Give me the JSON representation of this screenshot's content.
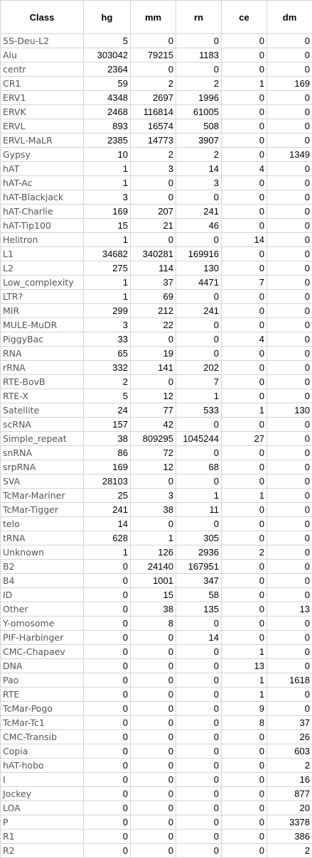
{
  "table": {
    "headers": [
      "Class",
      "hg",
      "mm",
      "rn",
      "ce",
      "dm"
    ],
    "rows": [
      [
        "5S-Deu-L2",
        "5",
        "0",
        "0",
        "0",
        "0"
      ],
      [
        "Alu",
        "303042",
        "79215",
        "1183",
        "0",
        "0"
      ],
      [
        "centr",
        "2364",
        "0",
        "0",
        "0",
        "0"
      ],
      [
        "CR1",
        "59",
        "2",
        "2",
        "1",
        "169"
      ],
      [
        "ERV1",
        "4348",
        "2697",
        "1996",
        "0",
        "0"
      ],
      [
        "ERVK",
        "2468",
        "116814",
        "61005",
        "0",
        "0"
      ],
      [
        "ERVL",
        "893",
        "16574",
        "508",
        "0",
        "0"
      ],
      [
        "ERVL-MaLR",
        "2385",
        "14773",
        "3907",
        "0",
        "0"
      ],
      [
        "Gypsy",
        "10",
        "2",
        "2",
        "0",
        "1349"
      ],
      [
        "hAT",
        "1",
        "3",
        "14",
        "4",
        "0"
      ],
      [
        "hAT-Ac",
        "1",
        "0",
        "3",
        "0",
        "0"
      ],
      [
        "hAT-Blackjack",
        "3",
        "0",
        "0",
        "0",
        "0"
      ],
      [
        "hAT-Charlie",
        "169",
        "207",
        "241",
        "0",
        "0"
      ],
      [
        "hAT-Tip100",
        "15",
        "21",
        "46",
        "0",
        "0"
      ],
      [
        "Helitron",
        "1",
        "0",
        "0",
        "14",
        "0"
      ],
      [
        "L1",
        "34682",
        "340281",
        "169916",
        "0",
        "0"
      ],
      [
        "L2",
        "275",
        "114",
        "130",
        "0",
        "0"
      ],
      [
        "Low_complexity",
        "1",
        "37",
        "4471",
        "7",
        "0"
      ],
      [
        "LTR?",
        "1",
        "69",
        "0",
        "0",
        "0"
      ],
      [
        "MIR",
        "299",
        "212",
        "241",
        "0",
        "0"
      ],
      [
        "MULE-MuDR",
        "3",
        "22",
        "0",
        "0",
        "0"
      ],
      [
        "PiggyBac",
        "33",
        "0",
        "0",
        "4",
        "0"
      ],
      [
        "RNA",
        "65",
        "19",
        "0",
        "0",
        "0"
      ],
      [
        "rRNA",
        "332",
        "141",
        "202",
        "0",
        "0"
      ],
      [
        "RTE-BovB",
        "2",
        "0",
        "7",
        "0",
        "0"
      ],
      [
        "RTE-X",
        "5",
        "12",
        "1",
        "0",
        "0"
      ],
      [
        "Satellite",
        "24",
        "77",
        "533",
        "1",
        "130"
      ],
      [
        "scRNA",
        "157",
        "42",
        "0",
        "0",
        "0"
      ],
      [
        "Simple_repeat",
        "38",
        "809295",
        "1045244",
        "27",
        "0"
      ],
      [
        "snRNA",
        "86",
        "72",
        "0",
        "0",
        "0"
      ],
      [
        "srpRNA",
        "169",
        "12",
        "68",
        "0",
        "0"
      ],
      [
        "SVA",
        "28103",
        "0",
        "0",
        "0",
        "0"
      ],
      [
        "TcMar-Mariner",
        "25",
        "3",
        "1",
        "1",
        "0"
      ],
      [
        "TcMar-Tigger",
        "241",
        "38",
        "11",
        "0",
        "0"
      ],
      [
        "telo",
        "14",
        "0",
        "0",
        "0",
        "0"
      ],
      [
        "tRNA",
        "628",
        "1",
        "305",
        "0",
        "0"
      ],
      [
        "Unknown",
        "1",
        "126",
        "2936",
        "2",
        "0"
      ],
      [
        "B2",
        "0",
        "24140",
        "167951",
        "0",
        "0"
      ],
      [
        "B4",
        "0",
        "1001",
        "347",
        "0",
        "0"
      ],
      [
        "ID",
        "0",
        "15",
        "58",
        "0",
        "0"
      ],
      [
        "Other",
        "0",
        "38",
        "135",
        "0",
        "13"
      ],
      [
        "Y-omosome",
        "0",
        "8",
        "0",
        "0",
        "0"
      ],
      [
        "PIF-Harbinger",
        "0",
        "0",
        "14",
        "0",
        "0"
      ],
      [
        "CMC-Chapaev",
        "0",
        "0",
        "0",
        "1",
        "0"
      ],
      [
        "DNA",
        "0",
        "0",
        "0",
        "13",
        "0"
      ],
      [
        "Pao",
        "0",
        "0",
        "0",
        "1",
        "1618"
      ],
      [
        "RTE",
        "0",
        "0",
        "0",
        "1",
        "0"
      ],
      [
        "TcMar-Pogo",
        "0",
        "0",
        "0",
        "9",
        "0"
      ],
      [
        "TcMar-Tc1",
        "0",
        "0",
        "0",
        "8",
        "37"
      ],
      [
        "CMC-Transib",
        "0",
        "0",
        "0",
        "0",
        "26"
      ],
      [
        "Copia",
        "0",
        "0",
        "0",
        "0",
        "603"
      ],
      [
        "hAT-hobo",
        "0",
        "0",
        "0",
        "0",
        "2"
      ],
      [
        "I",
        "0",
        "0",
        "0",
        "0",
        "16"
      ],
      [
        "Jockey",
        "0",
        "0",
        "0",
        "0",
        "877"
      ],
      [
        "LOA",
        "0",
        "0",
        "0",
        "0",
        "20"
      ],
      [
        "P",
        "0",
        "0",
        "0",
        "0",
        "3378"
      ],
      [
        "R1",
        "0",
        "0",
        "0",
        "0",
        "386"
      ],
      [
        "R2",
        "0",
        "0",
        "0",
        "0",
        "2"
      ]
    ]
  }
}
